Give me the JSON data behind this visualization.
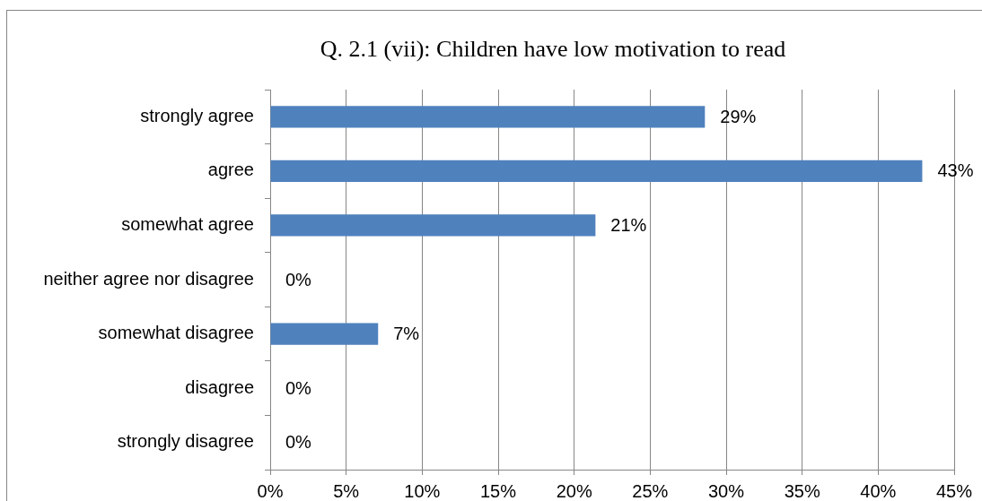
{
  "chart_data": {
    "type": "bar",
    "orientation": "horizontal",
    "title": "Q. 2.1 (vii): Children have low motivation to read",
    "categories": [
      "strongly agree",
      "agree",
      "somewhat agree",
      "neither agree nor disagree",
      "somewhat disagree",
      "disagree",
      "strongly disagree"
    ],
    "values": [
      28.6,
      42.9,
      21.4,
      0,
      7.1,
      0,
      0
    ],
    "value_labels": [
      "29%",
      "43%",
      "21%",
      "0%",
      "7%",
      "0%",
      "0%"
    ],
    "color": "#4f81bd",
    "xlim": [
      0,
      45
    ],
    "xticks": [
      {
        "value": 0,
        "label": "0%"
      },
      {
        "value": 5,
        "label": "5%"
      },
      {
        "value": 10,
        "label": "10%"
      },
      {
        "value": 15,
        "label": "15%"
      },
      {
        "value": 20,
        "label": "20%"
      },
      {
        "value": 25,
        "label": "25%"
      },
      {
        "value": 30,
        "label": "30%"
      },
      {
        "value": 35,
        "label": "35%"
      },
      {
        "value": 40,
        "label": "40%"
      },
      {
        "value": 45,
        "label": "45%"
      }
    ],
    "grid": "x"
  }
}
